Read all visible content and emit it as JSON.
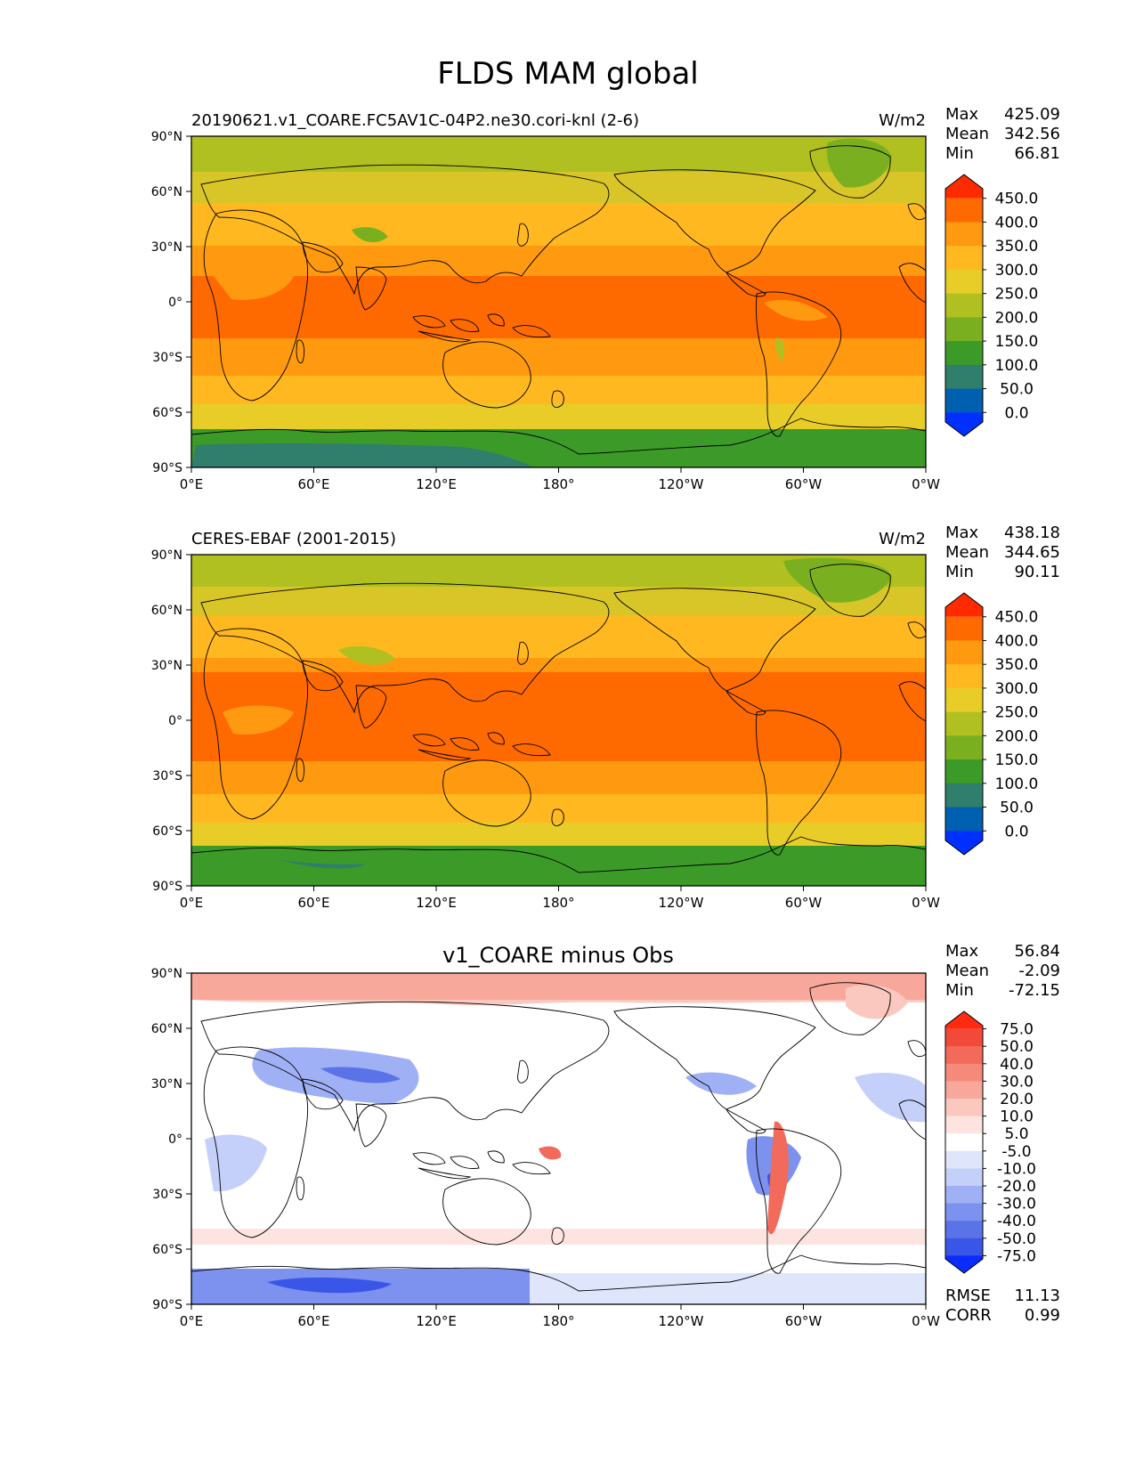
{
  "figure": {
    "title": "FLDS MAM global"
  },
  "axes": {
    "lat_ticks": [
      "90°N",
      "60°N",
      "30°N",
      "0°",
      "30°S",
      "60°S",
      "90°S"
    ],
    "lon_ticks": [
      "0°E",
      "60°E",
      "120°E",
      "180°",
      "120°W",
      "60°W",
      "0°W"
    ],
    "lat_range": [
      -90,
      90
    ],
    "lon_range": [
      0,
      360
    ]
  },
  "panels": [
    {
      "id": "test",
      "left_title": "20190621.v1_COARE.FC5AV1C-04P2.ne30.cori-knl (2-6)",
      "center_title": "",
      "units": "W/m2",
      "stats": [
        {
          "label": "Max",
          "value": "425.09"
        },
        {
          "label": "Mean",
          "value": "342.56"
        },
        {
          "label": "Min",
          "value": "66.81"
        }
      ],
      "colorbar": {
        "labels": [
          "450.0",
          "400.0",
          "350.0",
          "300.0",
          "250.0",
          "200.0",
          "150.0",
          "100.0",
          "50.0",
          "0.0"
        ],
        "colors": [
          "#ff2a00",
          "#ff6a00",
          "#ff9a10",
          "#ffb820",
          "#e8cc28",
          "#b0c020",
          "#7ab020",
          "#3c9a28",
          "#2f7f6c",
          "#0060b0",
          "#0030ff"
        ]
      }
    },
    {
      "id": "reference",
      "left_title": "CERES-EBAF (2001-2015)",
      "center_title": "",
      "units": "W/m2",
      "stats": [
        {
          "label": "Max",
          "value": "438.18"
        },
        {
          "label": "Mean",
          "value": "344.65"
        },
        {
          "label": "Min",
          "value": "90.11"
        }
      ],
      "colorbar": {
        "labels": [
          "450.0",
          "400.0",
          "350.0",
          "300.0",
          "250.0",
          "200.0",
          "150.0",
          "100.0",
          "50.0",
          "0.0"
        ],
        "colors": [
          "#ff2a00",
          "#ff6a00",
          "#ff9a10",
          "#ffb820",
          "#e8cc28",
          "#b0c020",
          "#7ab020",
          "#3c9a28",
          "#2f7f6c",
          "#0060b0",
          "#0030ff"
        ]
      }
    },
    {
      "id": "difference",
      "left_title": "",
      "center_title": "v1_COARE minus Obs",
      "units": "",
      "stats": [
        {
          "label": "Max",
          "value": "56.84"
        },
        {
          "label": "Mean",
          "value": "-2.09"
        },
        {
          "label": "Min",
          "value": "-72.15"
        }
      ],
      "bottom_stats": [
        {
          "label": "RMSE",
          "value": "11.13"
        },
        {
          "label": "CORR",
          "value": "0.99"
        }
      ],
      "colorbar": {
        "labels": [
          "75.0",
          "50.0",
          "40.0",
          "30.0",
          "20.0",
          "10.0",
          "5.0",
          "-5.0",
          "-10.0",
          "-20.0",
          "-30.0",
          "-40.0",
          "-50.0",
          "-75.0"
        ],
        "colors": [
          "#ff2a10",
          "#f24a3a",
          "#f26a5a",
          "#f58a7a",
          "#f8a89a",
          "#fbc8c0",
          "#fde4e0",
          "#ffffff",
          "#dfe6fb",
          "#c4cffa",
          "#a0b0f5",
          "#7c92ee",
          "#5a74e8",
          "#3a56e8",
          "#0a2cff"
        ]
      }
    }
  ]
}
